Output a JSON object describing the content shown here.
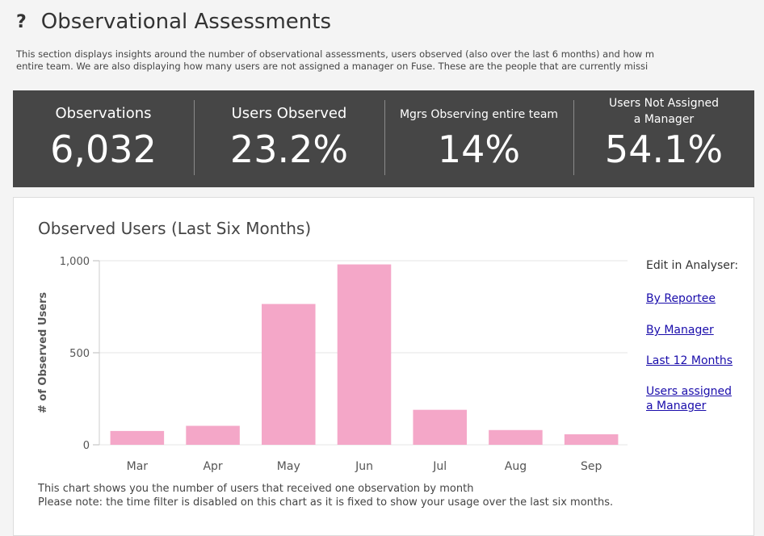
{
  "header": {
    "icon": "question-mark-icon",
    "title": "Observational Assessments",
    "description_line1": "This section displays insights around the number of observational assessments, users observed (also over the last 6 months) and how m",
    "description_line2": "entire team. We are also displaying how many users are not assigned a manager on Fuse. These are the people that are currently missi"
  },
  "kpis": [
    {
      "label": "Observations",
      "value": "6,032"
    },
    {
      "label": "Users Observed",
      "value": "23.2%"
    },
    {
      "label": "Mgrs Observing entire team",
      "value": "14%"
    },
    {
      "label_line1": "Users Not Assigned",
      "label_line2": "a Manager",
      "value": "54.1%"
    }
  ],
  "chart_card": {
    "title": "Observed Users (Last Six Months)",
    "footnote_line1": "This chart shows you the number of users that received one observation by month",
    "footnote_line2": "Please note: the time filter is disabled on this chart as it is fixed to show your usage over the last six months."
  },
  "sidebar": {
    "title": "Edit in Analyser:",
    "links": [
      "By Reportee",
      "By Manager",
      "Last 12 Months"
    ],
    "link_multiline": {
      "line1": "Users assigned",
      "line2": "a Manager"
    }
  },
  "chart_data": {
    "type": "bar",
    "title": "Observed Users (Last Six Months)",
    "ylabel": "# of Observed Users",
    "xlabel": "",
    "categories": [
      "Mar",
      "Apr",
      "May",
      "Jun",
      "Jul",
      "Aug",
      "Sep"
    ],
    "values": [
      75,
      103,
      765,
      980,
      190,
      80,
      57
    ],
    "ylim": [
      0,
      1000
    ],
    "yticks": [
      0,
      500,
      1000
    ],
    "ytick_labels": [
      "0",
      "500",
      "1,000"
    ],
    "grid": true,
    "bar_color": "#f4a7c8"
  }
}
